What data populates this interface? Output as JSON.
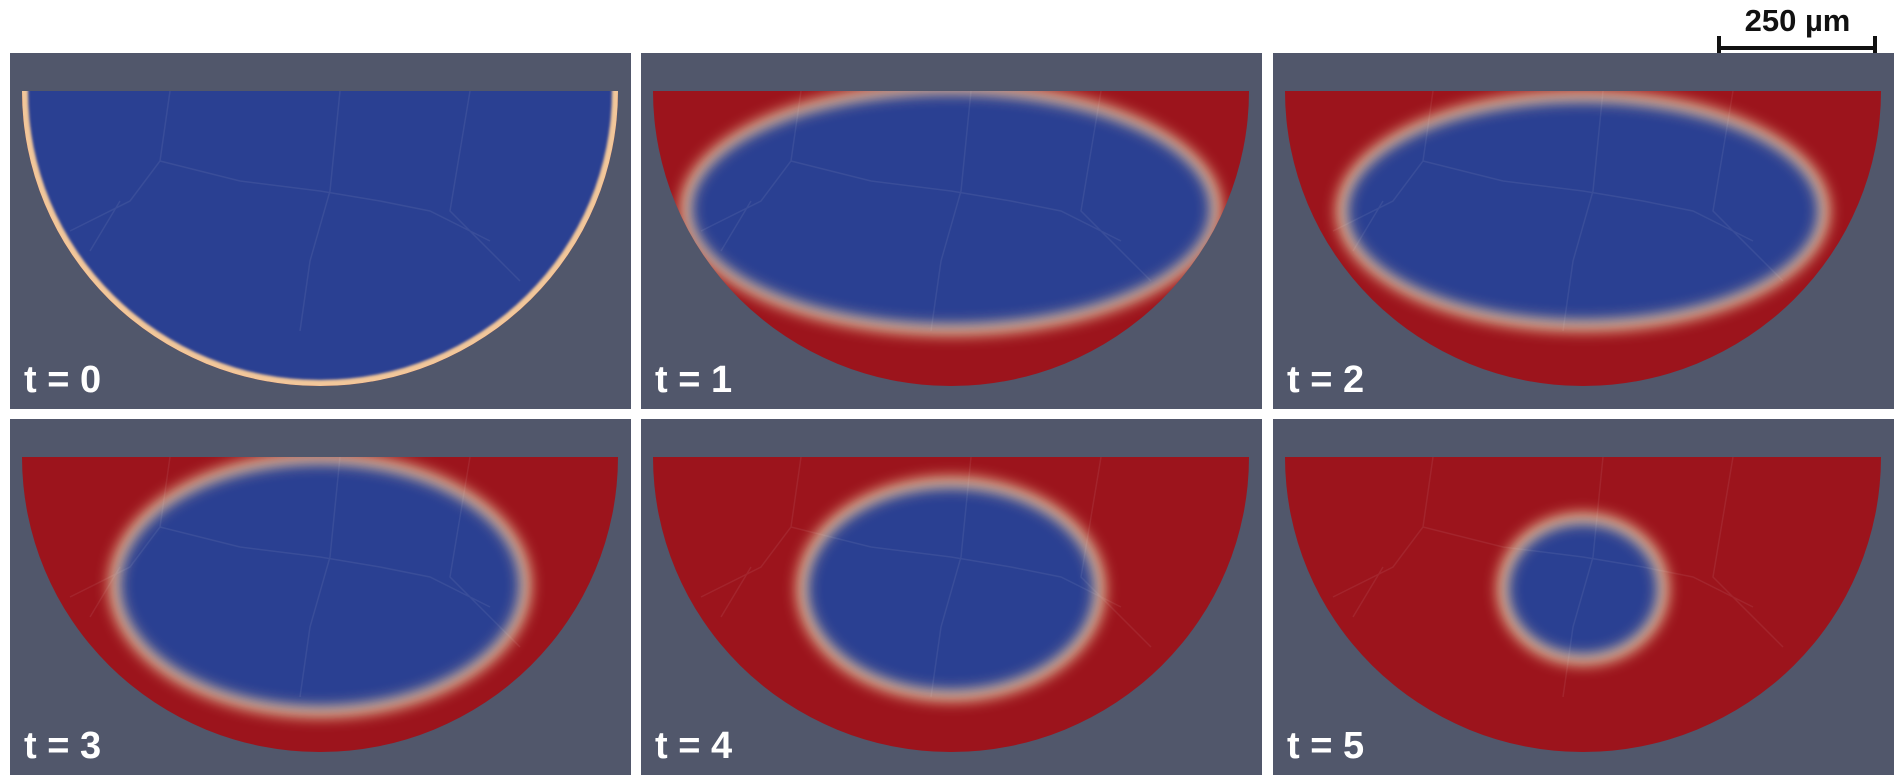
{
  "scale_bar": {
    "label": "250 µm"
  },
  "colors": {
    "background": "#51576b",
    "inner": "#2b3f92",
    "outer": "#9c141c"
  },
  "panels": [
    {
      "label": "t = 0",
      "time": 0,
      "inner_fraction": 0.98
    },
    {
      "label": "t = 1",
      "time": 1,
      "inner_fraction": 0.88
    },
    {
      "label": "t = 2",
      "time": 2,
      "inner_fraction": 0.78
    },
    {
      "label": "t = 3",
      "time": 3,
      "inner_fraction": 0.68
    },
    {
      "label": "t = 4",
      "time": 4,
      "inner_fraction": 0.5
    },
    {
      "label": "t = 5",
      "time": 5,
      "inner_fraction": 0.27
    }
  ]
}
